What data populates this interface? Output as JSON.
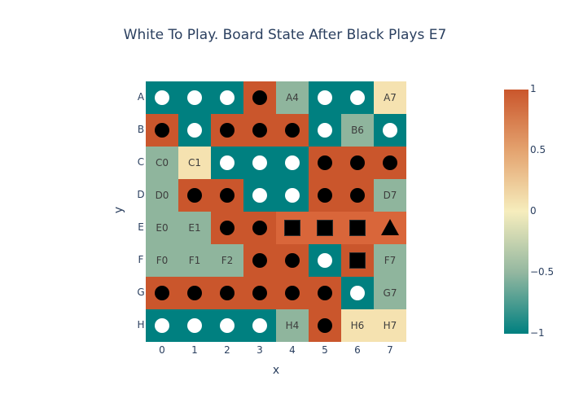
{
  "title": "White To Play. Board State After Black Plays E7",
  "xlabel": "x",
  "ylabel": "y",
  "colors": {
    "teal": "#008080",
    "sage": "#8fb59d",
    "orange": "#ca562c",
    "cream": "#f5e2b0",
    "light_orange": "#d9663a"
  },
  "x_ticks": [
    "0",
    "1",
    "2",
    "3",
    "4",
    "5",
    "6",
    "7"
  ],
  "y_ticks": [
    "A",
    "B",
    "C",
    "D",
    "E",
    "F",
    "G",
    "H"
  ],
  "colorbar_ticks": [
    "1",
    "0.5",
    "0",
    "−0.5",
    "−1"
  ],
  "board": [
    [
      "W",
      "W",
      "W",
      "B",
      "A4",
      "W",
      "W",
      "A7"
    ],
    [
      "B",
      "W",
      "B",
      "B",
      "B",
      "W",
      "B6",
      "W"
    ],
    [
      "C0",
      "C1",
      "W",
      "W",
      "W",
      "B",
      "B",
      "B"
    ],
    [
      "D0",
      "B",
      "B",
      "W",
      "W",
      "B",
      "B",
      "D7"
    ],
    [
      "E0",
      "E1",
      "B",
      "B",
      "S",
      "S",
      "S",
      "T"
    ],
    [
      "F0",
      "F1",
      "F2",
      "B",
      "B",
      "W",
      "S",
      "F7"
    ],
    [
      "B",
      "B",
      "B",
      "B",
      "B",
      "B",
      "W",
      "G7"
    ],
    [
      "W",
      "W",
      "W",
      "W",
      "H4",
      "B",
      "H6",
      "H7"
    ]
  ],
  "cell_values": [
    [
      -1,
      -1,
      -1,
      1,
      -0.5,
      -1,
      -1,
      0.1
    ],
    [
      1,
      -1,
      1,
      1,
      1,
      -1,
      -0.5,
      -1
    ],
    [
      -0.5,
      0.1,
      -1,
      -1,
      -1,
      1,
      1,
      1
    ],
    [
      -0.5,
      1,
      1,
      -1,
      -1,
      1,
      1,
      -0.5
    ],
    [
      -0.5,
      -0.5,
      1,
      1,
      0.9,
      0.9,
      0.9,
      0.9
    ],
    [
      -0.5,
      -0.5,
      -0.5,
      1,
      1,
      -1,
      1,
      -0.5
    ],
    [
      1,
      1,
      1,
      1,
      1,
      1,
      -1,
      -0.5
    ],
    [
      -1,
      -1,
      -1,
      -1,
      -0.5,
      1,
      0.1,
      0.1
    ]
  ]
}
